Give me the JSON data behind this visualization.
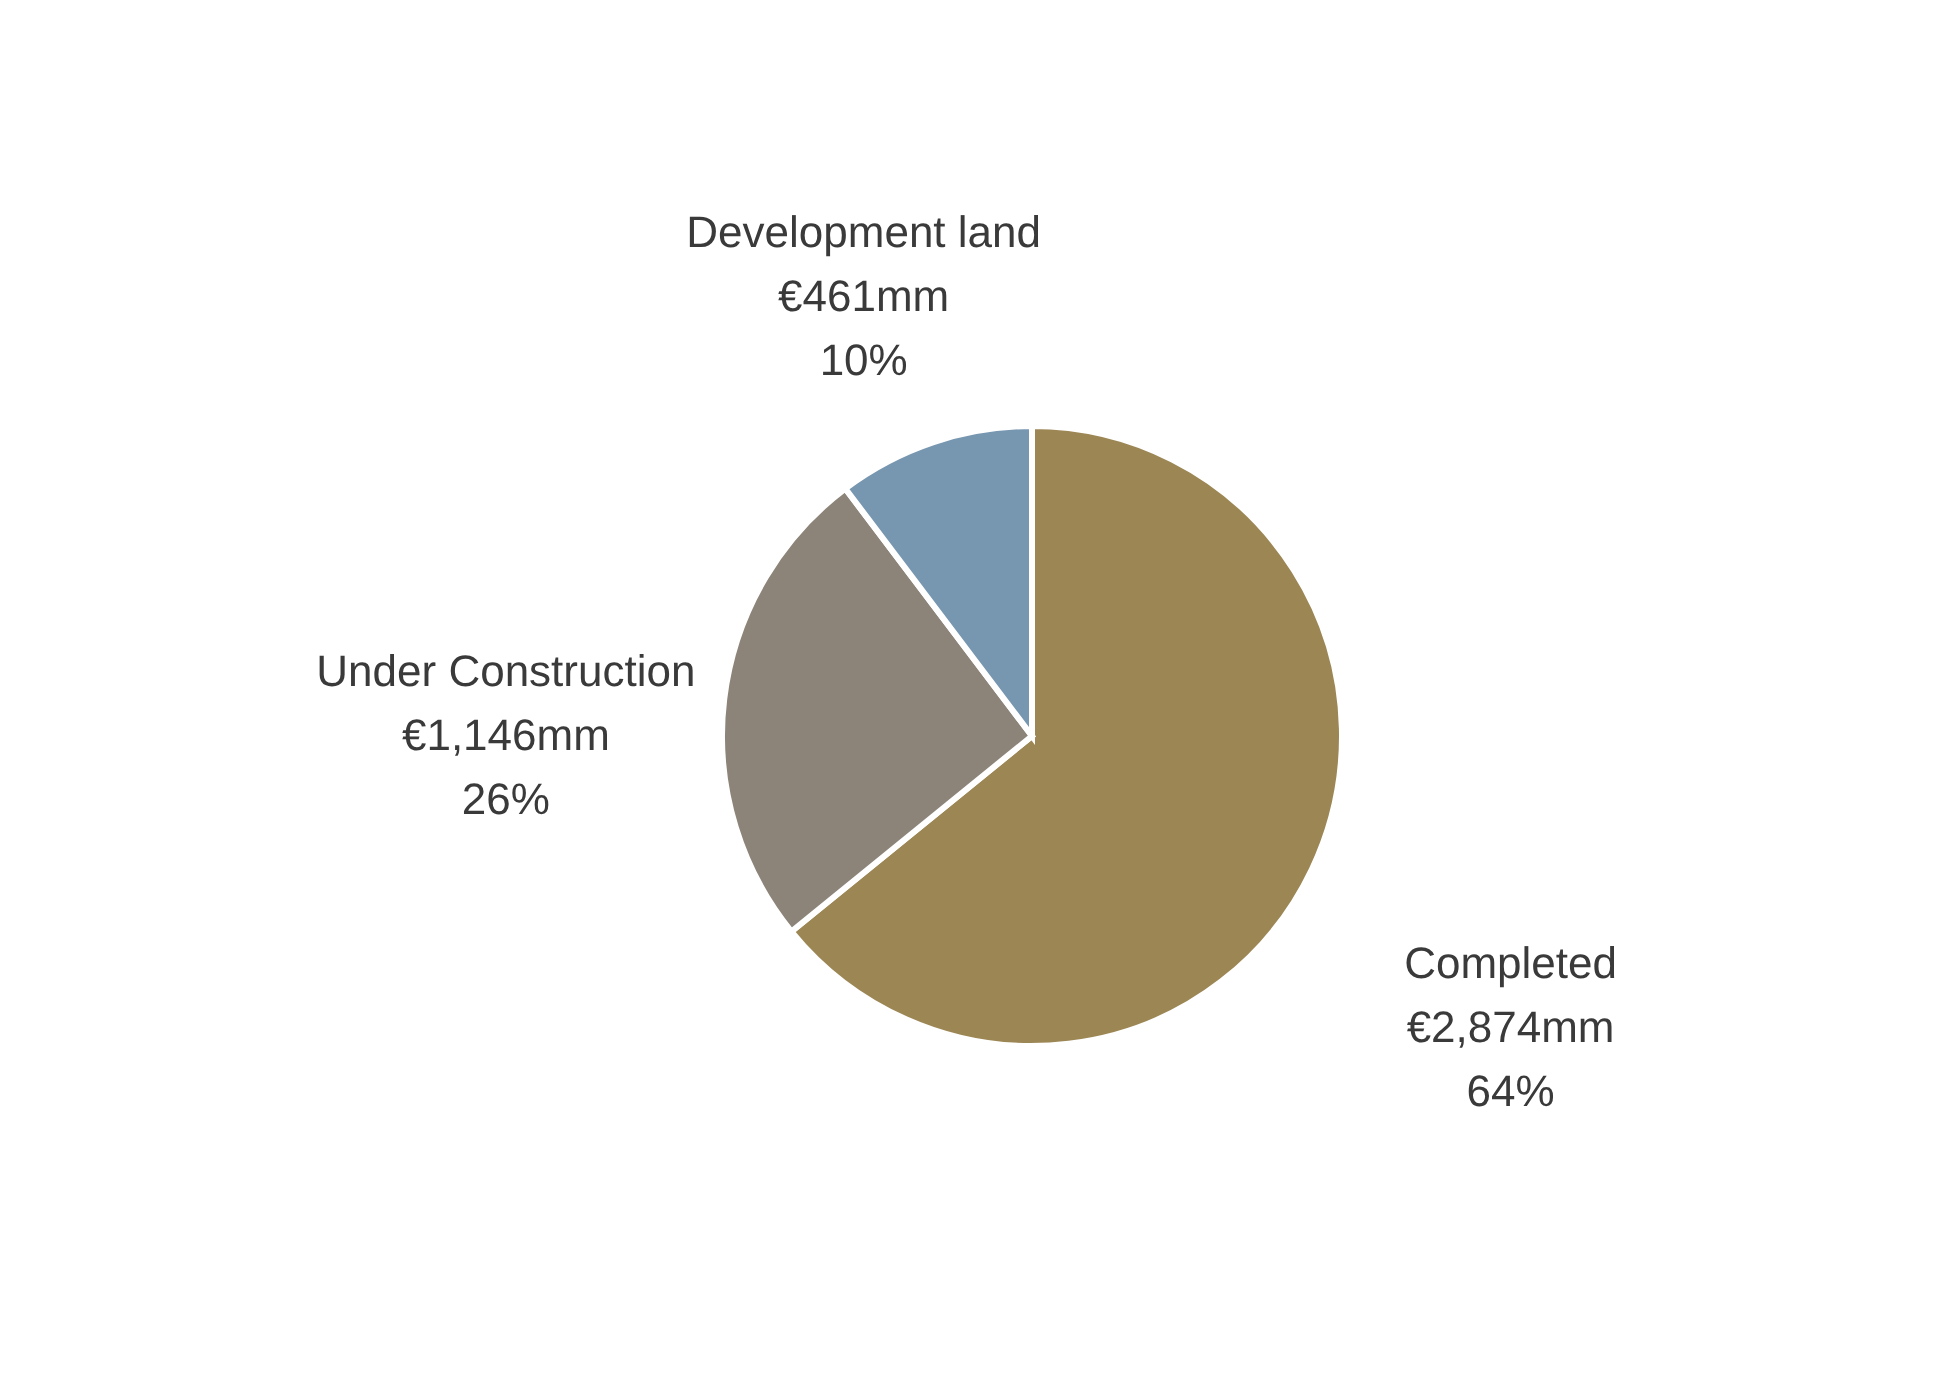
{
  "chart_data": {
    "type": "pie",
    "categories": [
      "Completed",
      "Under Construction",
      "Development land"
    ],
    "values": [
      2874,
      1146,
      461
    ],
    "value_labels": [
      "€2,874mm\n64%",
      "€1,146mm\n26%",
      "€461mm\n10%"
    ],
    "colors": [
      "#9c8654",
      "#8c8479",
      "#7796b0"
    ]
  }
}
